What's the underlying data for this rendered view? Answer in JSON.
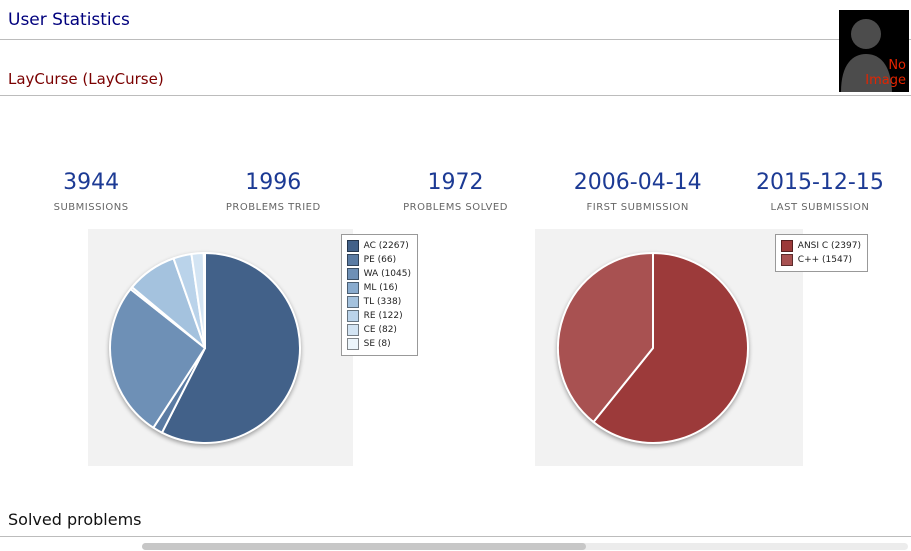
{
  "page": {
    "title": "User Statistics",
    "user_heading": "LayCurse (LayCurse)",
    "solved_heading": "Solved problems",
    "no_image_label": "No Image"
  },
  "colors": {
    "title_navy": "#00007d",
    "user_maroon": "#7a0000",
    "stat_blue": "#1c3a94",
    "no_image_red": "#e32400",
    "panel_gray": "#f2f2f2"
  },
  "stats": [
    {
      "value": "3944",
      "label": "SUBMISSIONS"
    },
    {
      "value": "1996",
      "label": "PROBLEMS TRIED"
    },
    {
      "value": "1972",
      "label": "PROBLEMS SOLVED"
    },
    {
      "value": "2006-04-14",
      "label": "FIRST SUBMISSION"
    },
    {
      "value": "2015-12-15",
      "label": "LAST SUBMISSION"
    }
  ],
  "chart_data": [
    {
      "type": "pie",
      "name": "submissions-by-verdict",
      "labels": [
        "AC",
        "PE",
        "WA",
        "ML",
        "TL",
        "RE",
        "CE",
        "SE"
      ],
      "values": [
        2267,
        66,
        1045,
        16,
        338,
        122,
        82,
        8
      ],
      "total": 3944,
      "legend_labels": [
        "AC (2267)",
        "PE (66)",
        "WA (1045)",
        "ML (16)",
        "TL (338)",
        "RE (122)",
        "CE (82)",
        "SE (8)"
      ],
      "colors": [
        "#426189",
        "#5a7ba3",
        "#6e90b6",
        "#89abce",
        "#a4c2de",
        "#bad3ea",
        "#d3e4f3",
        "#ecf5fb"
      ],
      "legend_position": "right",
      "start_angle_deg": 0,
      "direction": "clockwise"
    },
    {
      "type": "pie",
      "name": "submissions-by-language",
      "labels": [
        "ANSI C",
        "C++"
      ],
      "values": [
        2397,
        1547
      ],
      "total": 3944,
      "legend_labels": [
        "ANSI C (2397)",
        "C++ (1547)"
      ],
      "colors": [
        "#9c3a3a",
        "#a85151"
      ],
      "legend_position": "right",
      "start_angle_deg": 0,
      "direction": "clockwise"
    }
  ]
}
